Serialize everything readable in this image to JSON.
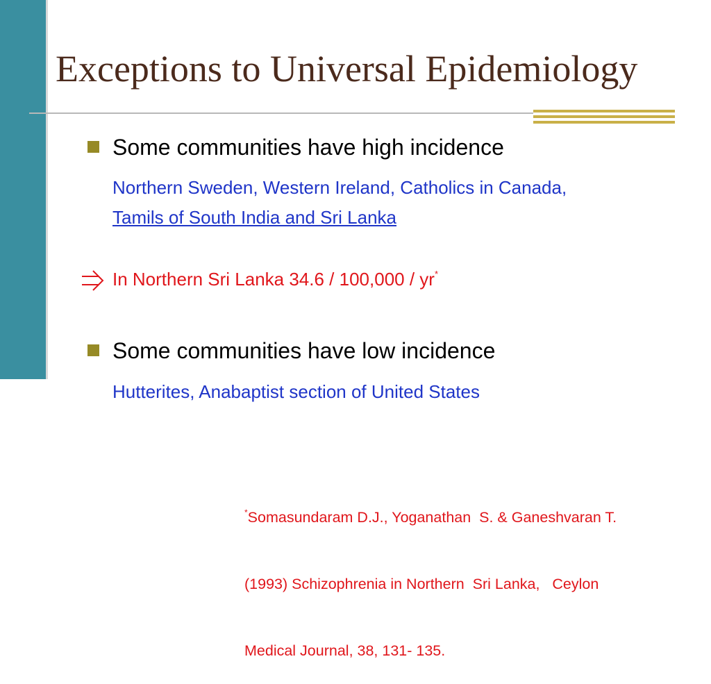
{
  "title": "Exceptions to Universal Epidemiology",
  "bullets": [
    {
      "text": "Some communities have high incidence",
      "detail": "Northern Sweden, Western Ireland, Catholics in Canada,",
      "link": "Tamils of South India and Sri Lanka"
    },
    {
      "text": "Some communities have low incidence",
      "detail": "Hutterites, Anabaptist section of United States"
    }
  ],
  "implication": {
    "text": "In Northern Sri Lanka 34.6 / 100,000 / yr",
    "footnote_mark": "*"
  },
  "reference": {
    "footnote_mark": "*",
    "lines": [
      "Somasundaram D.J., Yoganathan  S. & Ganeshvaran T.",
      "(1993) Schizophrenia in Northern  Sri Lanka,   Ceylon",
      "Medical Journal, 38, 131- 135."
    ]
  }
}
